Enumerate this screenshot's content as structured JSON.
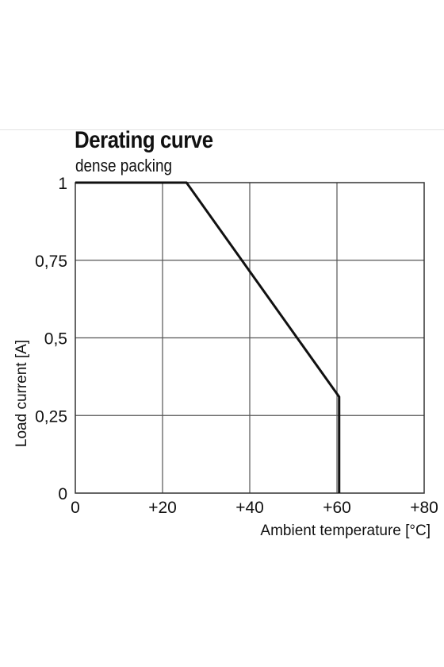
{
  "chart_data": {
    "type": "line",
    "title": "Derating curve",
    "subtitle": "dense packing",
    "xlabel": "Ambient temperature [°C]",
    "ylabel": "Load current [A]",
    "xlim": [
      0,
      80
    ],
    "ylim": [
      0,
      1
    ],
    "x_ticks": [
      0,
      20,
      40,
      60,
      80
    ],
    "x_tick_labels": [
      "0",
      "+20",
      "+40",
      "+60",
      "+80"
    ],
    "y_ticks": [
      0,
      0.25,
      0.5,
      0.75,
      1
    ],
    "y_tick_labels": [
      "0",
      "0,25",
      "0,5",
      "0,75",
      "1"
    ],
    "grid": true,
    "series": [
      {
        "x": [
          0,
          25.5,
          60.5,
          60.5
        ],
        "y": [
          1,
          1,
          0.31,
          0
        ]
      }
    ],
    "line_color": "#111111",
    "grid_color": "#555555"
  }
}
